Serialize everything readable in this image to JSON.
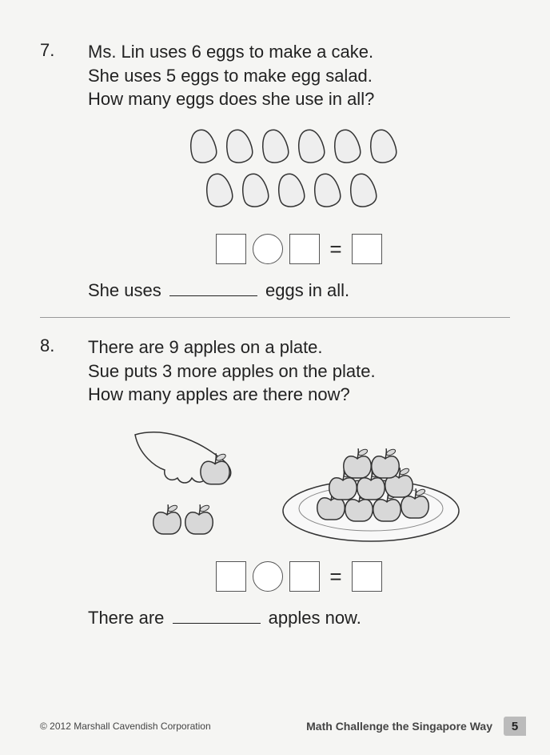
{
  "problems": [
    {
      "number": "7.",
      "lines": [
        "Ms. Lin uses 6 eggs to make a cake.",
        "She uses 5 eggs to make egg salad.",
        "How many eggs does she use in all?"
      ],
      "answer_prefix": "She uses",
      "answer_suffix": "eggs in all.",
      "illustration": {
        "type": "eggs",
        "row1_count": 6,
        "row2_count": 5,
        "fill": "#eeeeee",
        "stroke": "#333333"
      }
    },
    {
      "number": "8.",
      "lines": [
        "There are 9 apples on a plate.",
        "Sue puts 3 more apples on the plate.",
        "How many apples are there now?"
      ],
      "answer_prefix": "There are",
      "answer_suffix": "apples now.",
      "illustration": {
        "type": "apples",
        "hand_apples": 3,
        "plate_apples": 9,
        "apple_fill": "#d8d8d8",
        "apple_stroke": "#333333",
        "plate_fill": "#f8f8f8"
      }
    }
  ],
  "equation": {
    "equals": "="
  },
  "footer": {
    "copyright": "© 2012 Marshall Cavendish Corporation",
    "book_title": "Math Challenge the Singapore Way",
    "page": "5"
  }
}
